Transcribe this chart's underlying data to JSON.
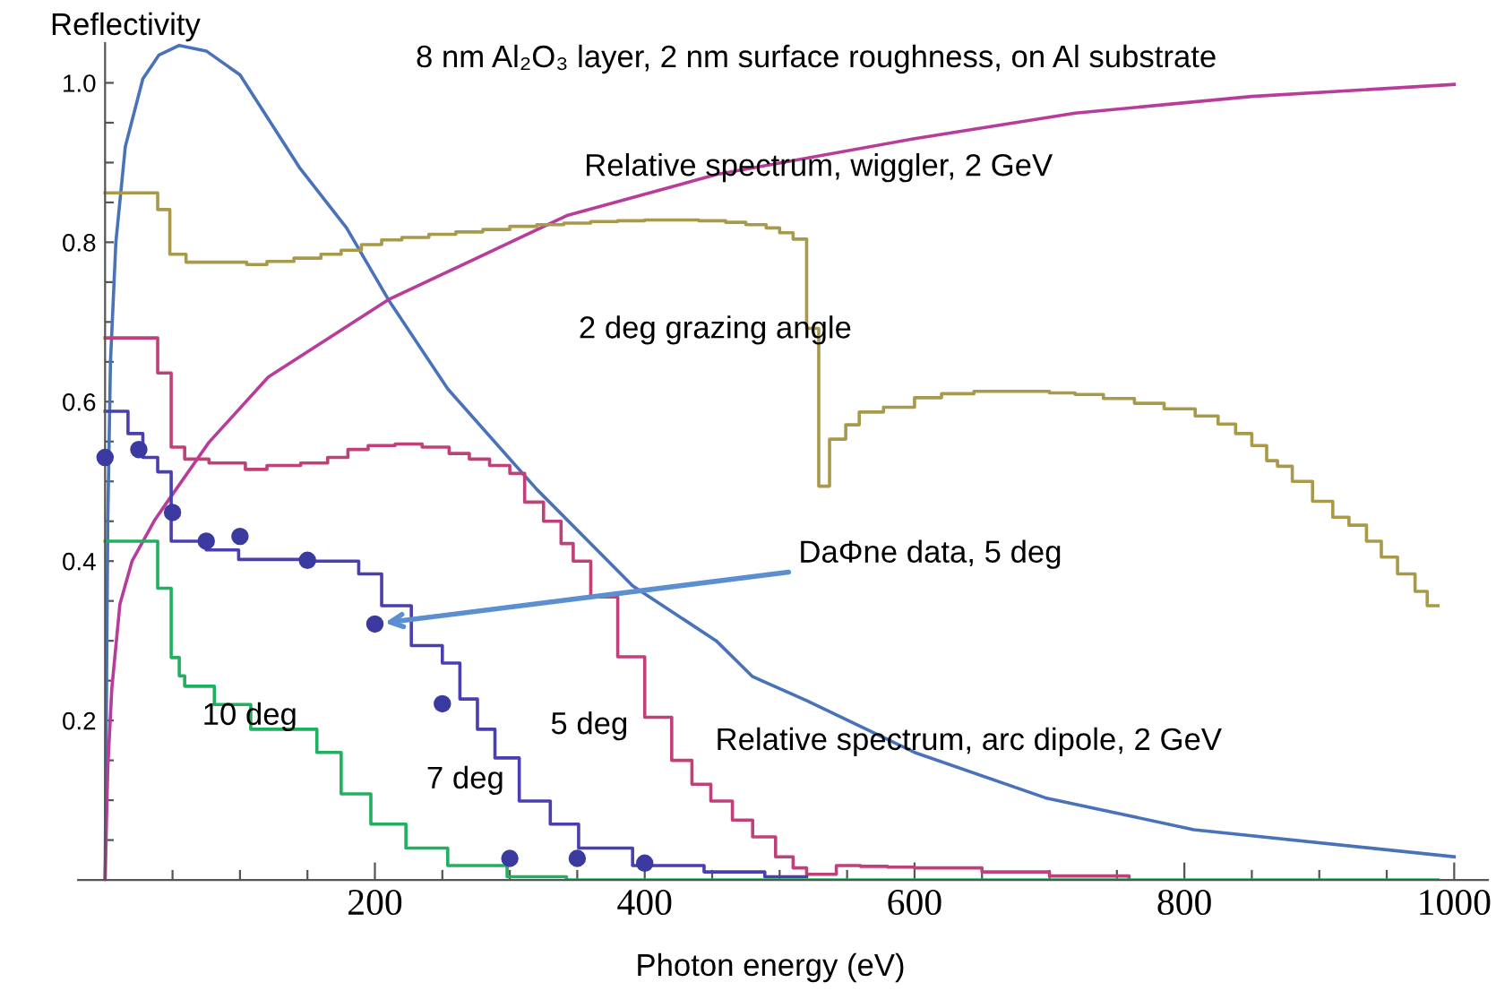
{
  "chart_data": {
    "type": "line",
    "title": "8 nm Al₂O₃ layer, 2 nm surface roughness, on Al substrate",
    "xlabel": "Photon energy (eV)",
    "ylabel": "Reflectivity",
    "xlim": [
      -20,
      1025
    ],
    "ylim": [
      0,
      1.05
    ],
    "xticks": [
      {
        "value": 50,
        "label": null
      },
      {
        "value": 100,
        "label": null
      },
      {
        "value": 150,
        "label": null
      },
      200,
      {
        "value": 250,
        "label": null
      },
      {
        "value": 300,
        "label": null
      },
      {
        "value": 350,
        "label": null
      },
      400,
      {
        "value": 450,
        "label": null
      },
      {
        "value": 500,
        "label": null
      },
      {
        "value": 550,
        "label": null
      },
      600,
      {
        "value": 650,
        "label": null
      },
      {
        "value": 700,
        "label": null
      },
      {
        "value": 750,
        "label": null
      },
      800,
      {
        "value": 850,
        "label": null
      },
      {
        "value": 900,
        "label": null
      },
      {
        "value": 950,
        "label": null
      },
      1000
    ],
    "yticks": [
      {
        "value": 0.05,
        "label": null
      },
      {
        "value": 0.1,
        "label": null
      },
      {
        "value": 0.15,
        "label": null
      },
      0.2,
      {
        "value": 0.25,
        "label": null
      },
      {
        "value": 0.3,
        "label": null
      },
      {
        "value": 0.35,
        "label": null
      },
      0.4,
      {
        "value": 0.45,
        "label": null
      },
      {
        "value": 0.5,
        "label": null
      },
      {
        "value": 0.55,
        "label": null
      },
      0.6,
      {
        "value": 0.65,
        "label": null
      },
      {
        "value": 0.7,
        "label": null
      },
      {
        "value": 0.75,
        "label": null
      },
      0.8,
      {
        "value": 0.85,
        "label": null
      },
      {
        "value": 0.9,
        "label": null
      },
      {
        "value": 0.95,
        "label": null
      },
      {
        "value": 1.0,
        "label": "1.0"
      }
    ],
    "grid": false,
    "legend": false,
    "series": [
      {
        "name": "Relative spectrum, arc dipole, 2 GeV",
        "color": "#4a72b8",
        "x": [
          0,
          2,
          4,
          8,
          15,
          28,
          40,
          55,
          75,
          100,
          144,
          179,
          210,
          254,
          320,
          391,
          453,
          480,
          520,
          600,
          697,
          807,
          1000
        ],
        "values": [
          0,
          0.45,
          0.65,
          0.8,
          0.92,
          1.005,
          1.035,
          1.047,
          1.04,
          1.01,
          0.894,
          0.818,
          0.728,
          0.616,
          0.49,
          0.369,
          0.3,
          0.255,
          0.225,
          0.16,
          0.103,
          0.063,
          0.029
        ]
      },
      {
        "name": "Relative spectrum, wiggler, 2 GeV",
        "color": "#b83d9a",
        "x": [
          0,
          2,
          5,
          11,
          20,
          37,
          46,
          77,
          121,
          210,
          343,
          453,
          600,
          719,
          850,
          1000
        ],
        "values": [
          0,
          0.14,
          0.24,
          0.346,
          0.4,
          0.452,
          0.474,
          0.549,
          0.631,
          0.728,
          0.834,
          0.885,
          0.93,
          0.962,
          0.983,
          0.998
        ]
      },
      {
        "name": "2 deg grazing angle",
        "type": "step",
        "color": "#a89a4a",
        "x": [
          0,
          39,
          48,
          60,
          105,
          120,
          140,
          160,
          175,
          190,
          205,
          220,
          240,
          260,
          280,
          300,
          320,
          340,
          360,
          380,
          400,
          420,
          440,
          460,
          475,
          490,
          500,
          510,
          520,
          529,
          537,
          549,
          559,
          577,
          600,
          620,
          644,
          673,
          700,
          719,
          740,
          763,
          785,
          808,
          825,
          838,
          850,
          861,
          869,
          880,
          895,
          910,
          922,
          935,
          946,
          958,
          971,
          980,
          988
        ],
        "values": [
          0.862,
          0.841,
          0.785,
          0.775,
          0.772,
          0.776,
          0.78,
          0.785,
          0.79,
          0.797,
          0.803,
          0.806,
          0.81,
          0.813,
          0.816,
          0.82,
          0.822,
          0.824,
          0.826,
          0.827,
          0.828,
          0.828,
          0.827,
          0.825,
          0.822,
          0.818,
          0.812,
          0.804,
          0.692,
          0.494,
          0.553,
          0.571,
          0.587,
          0.593,
          0.605,
          0.61,
          0.613,
          0.613,
          0.611,
          0.609,
          0.604,
          0.598,
          0.591,
          0.582,
          0.572,
          0.56,
          0.545,
          0.526,
          0.519,
          0.5,
          0.475,
          0.455,
          0.445,
          0.425,
          0.405,
          0.384,
          0.362,
          0.344,
          0.344
        ]
      },
      {
        "name": "5 deg",
        "type": "step",
        "color": "#c0407a",
        "x": [
          0,
          39,
          49,
          59,
          77,
          104,
          120,
          145,
          165,
          180,
          195,
          215,
          235,
          255,
          270,
          285,
          300,
          311,
          325,
          338,
          347,
          360,
          380,
          400,
          420,
          435,
          449,
          465,
          480,
          497,
          510,
          520,
          527,
          542,
          560,
          580,
          600,
          650,
          700,
          759
        ],
        "values": [
          0.68,
          0.636,
          0.543,
          0.528,
          0.523,
          0.515,
          0.52,
          0.523,
          0.53,
          0.54,
          0.545,
          0.547,
          0.543,
          0.535,
          0.528,
          0.52,
          0.51,
          0.474,
          0.45,
          0.422,
          0.4,
          0.355,
          0.28,
          0.204,
          0.15,
          0.12,
          0.099,
          0.075,
          0.054,
          0.029,
          0.015,
          0.007,
          0.007,
          0.018,
          0.017,
          0.016,
          0.015,
          0.01,
          0.005,
          0.002
        ]
      },
      {
        "name": "7 deg",
        "type": "step",
        "color": "#4a3fb0",
        "x": [
          0,
          17,
          28,
          39,
          49,
          75,
          99,
          148,
          188,
          205,
          227,
          250,
          263,
          276,
          289,
          307,
          330,
          351,
          391,
          444,
          489,
          520
        ],
        "values": [
          0.588,
          0.56,
          0.53,
          0.512,
          0.425,
          0.414,
          0.402,
          0.4,
          0.384,
          0.344,
          0.294,
          0.272,
          0.227,
          0.189,
          0.153,
          0.099,
          0.07,
          0.04,
          0.018,
          0.01,
          0.004,
          0.004
        ]
      },
      {
        "name": "10 deg",
        "type": "step",
        "color": "#20b060",
        "x": [
          0,
          39,
          49,
          55,
          59,
          81,
          108,
          157,
          175,
          197,
          223,
          254,
          298,
          342,
          988
        ],
        "values": [
          0.425,
          0.366,
          0.279,
          0.256,
          0.243,
          0.22,
          0.189,
          0.16,
          0.108,
          0.07,
          0.04,
          0.018,
          0.004,
          0,
          0
        ]
      },
      {
        "type": "scatter",
        "color": "#3a3aa0",
        "marker": "circle",
        "x": [
          0,
          25,
          50,
          75,
          100,
          150,
          200,
          250,
          300,
          350,
          400
        ],
        "values": [
          0.53,
          0.54,
          0.461,
          0.425,
          0.431,
          0.401,
          0.321,
          0.221,
          0.027,
          0.027,
          0.021
        ]
      }
    ],
    "annotations": [
      {
        "text": "DaΦne data, 5 deg",
        "x": 200,
        "y": 0.321
      }
    ]
  }
}
